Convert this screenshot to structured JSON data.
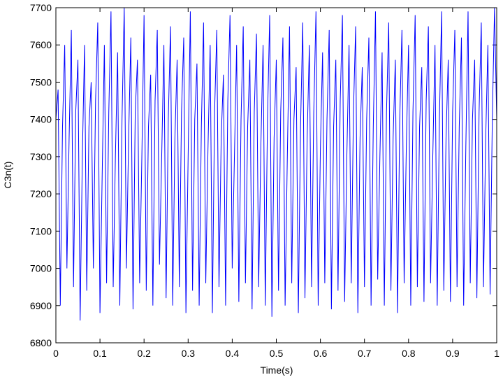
{
  "chart_data": {
    "type": "line",
    "xlabel": "Time(s)",
    "ylabel": "C3n(t)",
    "xlim": [
      0,
      1
    ],
    "ylim": [
      6800,
      7700
    ],
    "xticks": [
      0,
      0.1,
      0.2,
      0.3,
      0.4,
      0.5,
      0.6,
      0.7,
      0.8,
      0.9,
      1
    ],
    "yticks": [
      6800,
      6900,
      7000,
      7100,
      7200,
      7300,
      7400,
      7500,
      7600,
      7700
    ],
    "series": [
      {
        "color": "#0000ff",
        "x": [
          0,
          0.005,
          0.01,
          0.015,
          0.02,
          0.025,
          0.03,
          0.035,
          0.04,
          0.045,
          0.05,
          0.055,
          0.06,
          0.065,
          0.07,
          0.075,
          0.08,
          0.085,
          0.09,
          0.095,
          0.1,
          0.105,
          0.11,
          0.115,
          0.12,
          0.125,
          0.13,
          0.135,
          0.14,
          0.145,
          0.15,
          0.155,
          0.16,
          0.165,
          0.17,
          0.175,
          0.18,
          0.185,
          0.19,
          0.195,
          0.2,
          0.205,
          0.21,
          0.215,
          0.22,
          0.225,
          0.23,
          0.235,
          0.24,
          0.245,
          0.25,
          0.255,
          0.26,
          0.265,
          0.27,
          0.275,
          0.28,
          0.285,
          0.29,
          0.295,
          0.3,
          0.305,
          0.31,
          0.315,
          0.32,
          0.325,
          0.33,
          0.335,
          0.34,
          0.345,
          0.35,
          0.355,
          0.36,
          0.365,
          0.37,
          0.375,
          0.38,
          0.385,
          0.39,
          0.395,
          0.4,
          0.405,
          0.41,
          0.415,
          0.42,
          0.425,
          0.43,
          0.435,
          0.44,
          0.445,
          0.45,
          0.455,
          0.46,
          0.465,
          0.47,
          0.475,
          0.48,
          0.485,
          0.49,
          0.495,
          0.5,
          0.505,
          0.51,
          0.515,
          0.52,
          0.525,
          0.53,
          0.535,
          0.54,
          0.545,
          0.55,
          0.555,
          0.56,
          0.565,
          0.57,
          0.575,
          0.58,
          0.585,
          0.59,
          0.595,
          0.6,
          0.605,
          0.61,
          0.615,
          0.62,
          0.625,
          0.63,
          0.635,
          0.64,
          0.645,
          0.65,
          0.655,
          0.66,
          0.665,
          0.67,
          0.675,
          0.68,
          0.685,
          0.69,
          0.695,
          0.7,
          0.705,
          0.71,
          0.715,
          0.72,
          0.725,
          0.73,
          0.735,
          0.74,
          0.745,
          0.75,
          0.755,
          0.76,
          0.765,
          0.77,
          0.775,
          0.78,
          0.785,
          0.79,
          0.795,
          0.8,
          0.805,
          0.81,
          0.815,
          0.82,
          0.825,
          0.83,
          0.835,
          0.84,
          0.845,
          0.85,
          0.855,
          0.86,
          0.865,
          0.87,
          0.875,
          0.88,
          0.885,
          0.89,
          0.895,
          0.9,
          0.905,
          0.91,
          0.915,
          0.92,
          0.925,
          0.93,
          0.935,
          0.94,
          0.945,
          0.95,
          0.955,
          0.96,
          0.965,
          0.97,
          0.975,
          0.98,
          0.985,
          0.99,
          0.995,
          1
        ],
        "values": [
          7400,
          7480,
          6900,
          7380,
          7600,
          7000,
          7350,
          7640,
          6950,
          7420,
          7560,
          6860,
          7300,
          7600,
          6940,
          7380,
          7500,
          7000,
          7450,
          7660,
          6880,
          7250,
          7600,
          6960,
          7420,
          7690,
          6950,
          7300,
          7580,
          6900,
          7400,
          7700,
          7000,
          7350,
          7620,
          6890,
          7420,
          7560,
          6960,
          7300,
          7680,
          6940,
          7380,
          7520,
          6900,
          7450,
          7640,
          7010,
          7300,
          7600,
          6920,
          7400,
          7650,
          6900,
          7350,
          7560,
          6950,
          7420,
          7620,
          6880,
          7300,
          7690,
          6940,
          7400,
          7550,
          6900,
          7380,
          7660,
          6960,
          7320,
          7600,
          6880,
          7420,
          7640,
          6950,
          7350,
          7520,
          6900,
          7450,
          7680,
          7000,
          7300,
          7600,
          6910,
          7400,
          7650,
          6960,
          7380,
          7560,
          6890,
          7420,
          7630,
          6950,
          7330,
          7600,
          6900,
          7400,
          7680,
          6870,
          7350,
          7560,
          6940,
          7420,
          7620,
          6900,
          7300,
          7650,
          6960,
          7400,
          7540,
          6880,
          7380,
          7660,
          6920,
          7350,
          7600,
          6950,
          7420,
          7690,
          6900,
          7320,
          7580,
          6960,
          7400,
          7640,
          6890,
          7380,
          7560,
          6940,
          7450,
          7680,
          6910,
          7300,
          7600,
          6960,
          7420,
          7650,
          6880,
          7350,
          7540,
          6950,
          7400,
          7620,
          6900,
          7380,
          7690,
          6970,
          7300,
          7580,
          6900,
          7420,
          7660,
          6940,
          7350,
          7560,
          6880,
          7400,
          7640,
          6960,
          7330,
          7600,
          6900,
          7420,
          7680,
          6950,
          7380,
          7540,
          6910,
          7450,
          7650,
          6960,
          7300,
          7600,
          6900,
          7400,
          7690,
          6940,
          7350,
          7560,
          6910,
          7420,
          7640,
          6950,
          7380,
          7620,
          6900,
          7330,
          7690,
          6960,
          7400,
          7560,
          6920,
          7420,
          7660,
          6950,
          7350,
          7600,
          6930,
          7400,
          7700,
          7400
        ]
      }
    ]
  }
}
